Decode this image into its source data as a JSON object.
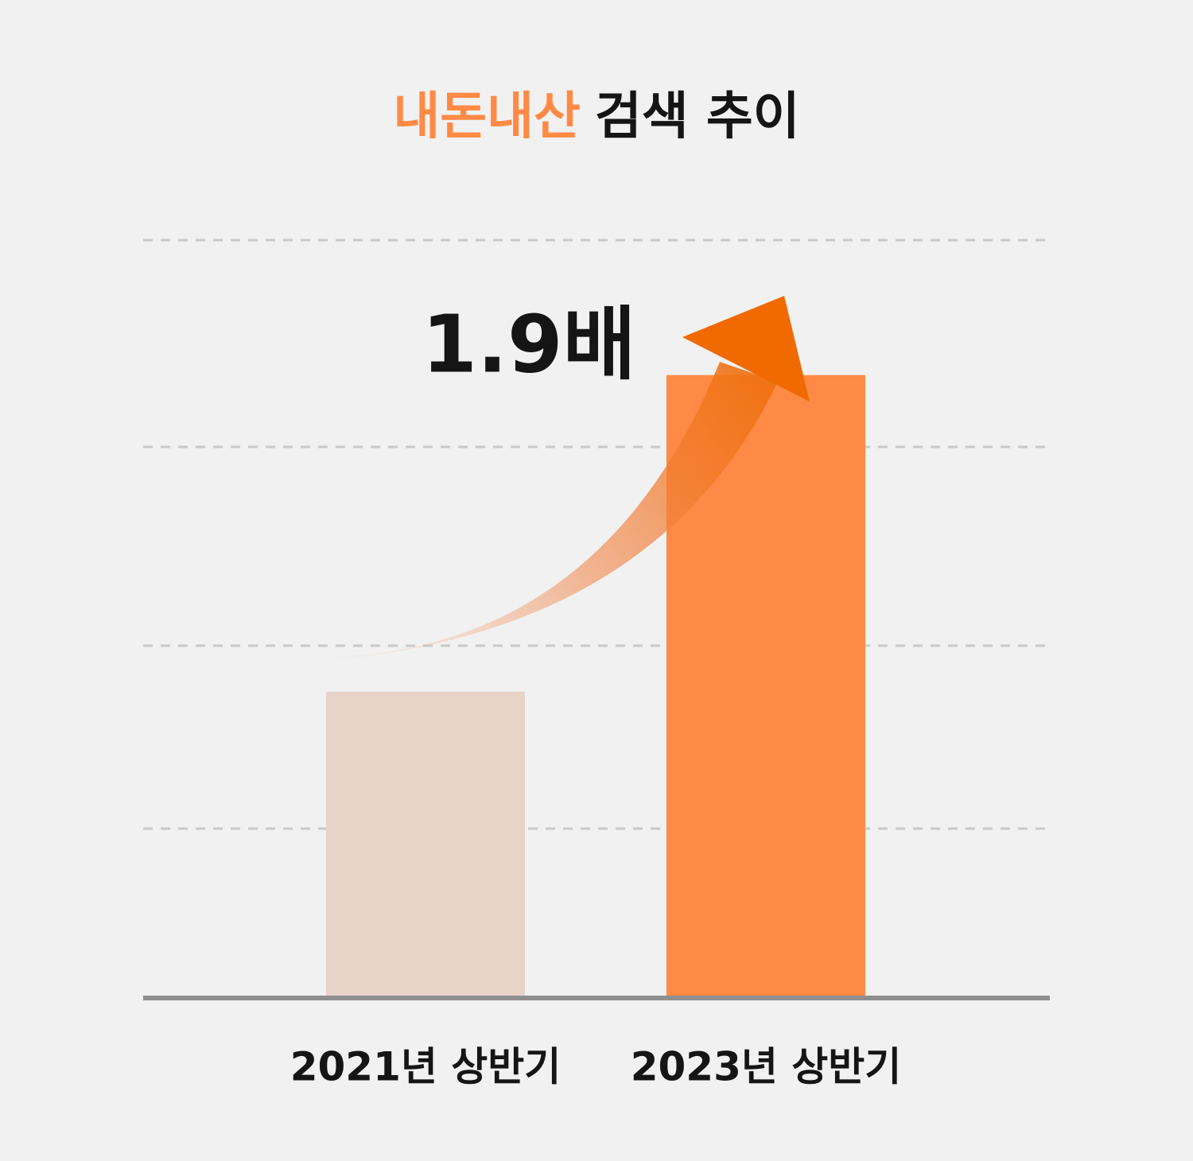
{
  "chart_data": {
    "type": "bar",
    "title": {
      "highlight": "내돈내산",
      "text": "검색 추이"
    },
    "annotation": "1.9배",
    "categories": [
      "2021년 상반기",
      "2023년 상반기"
    ],
    "values": [
      40.4,
      82.2
    ],
    "colors": [
      "#e8d3c9",
      "#ff8a45"
    ],
    "ylim": [
      0,
      100
    ]
  }
}
